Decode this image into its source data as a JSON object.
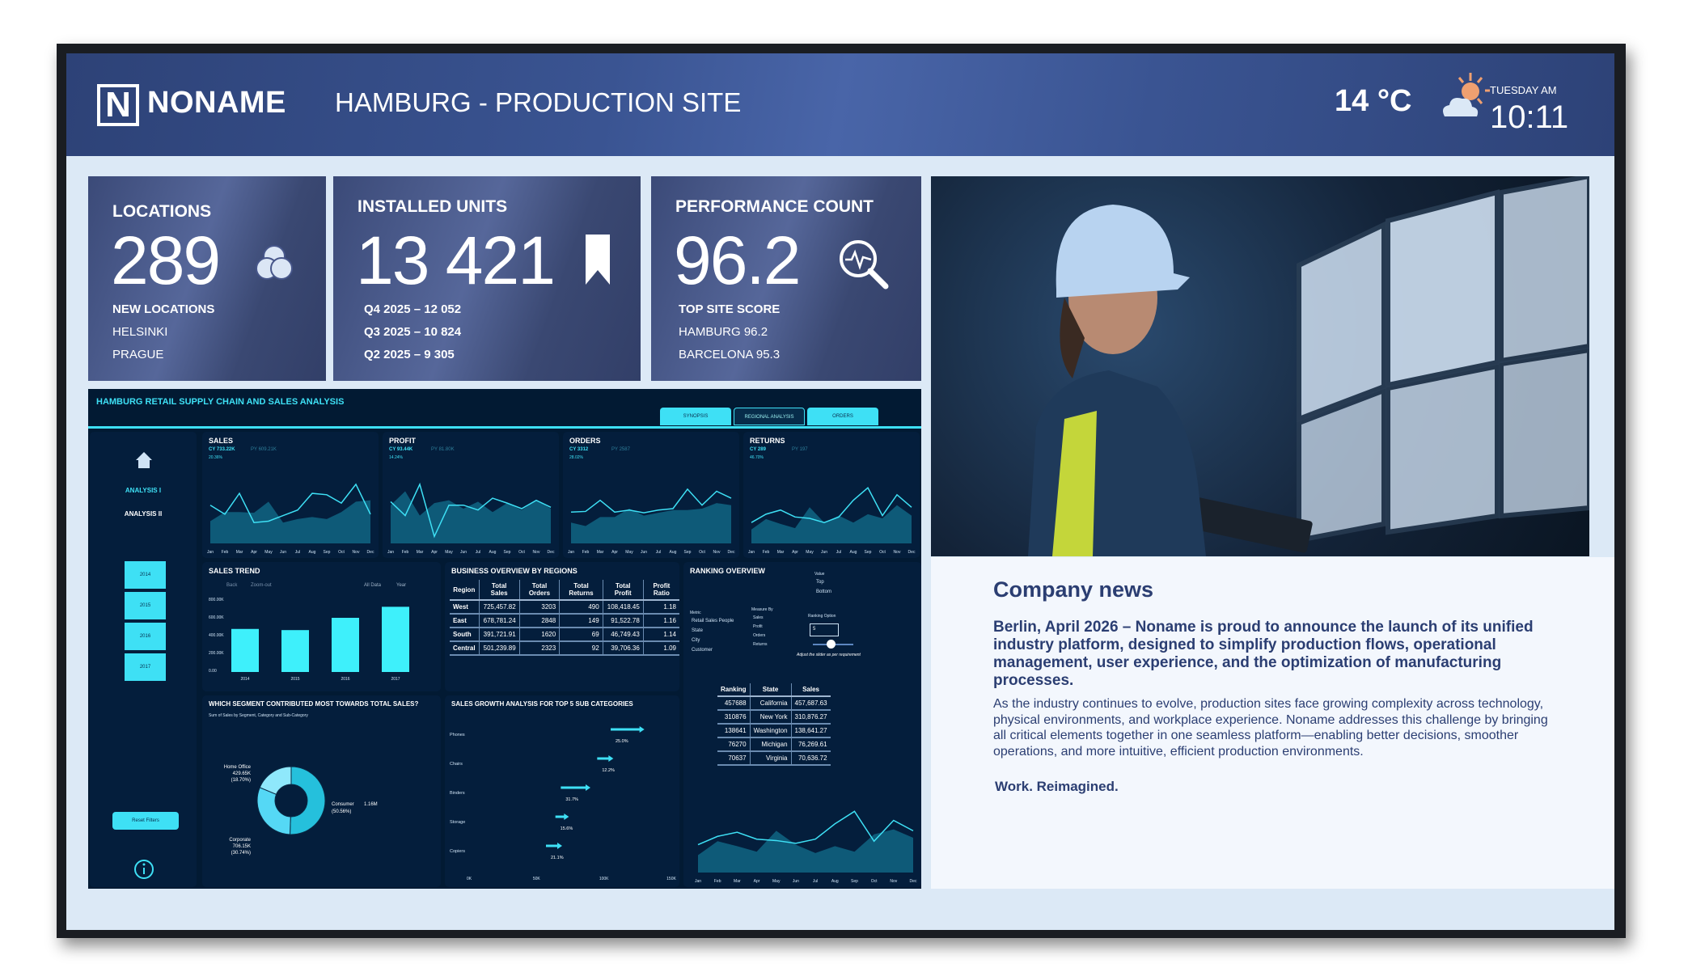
{
  "header": {
    "logo_letter": "N",
    "brand": "NONAME",
    "site_title": "HAMBURG - PRODUCTION SITE",
    "temperature": "14 °C",
    "weather_icon": "sun-cloud-icon",
    "day": "TUESDAY AM",
    "time": "10:11"
  },
  "cards": [
    {
      "title": "LOCATIONS",
      "value": "289",
      "icon": "venn-circles-icon",
      "lines": [
        "NEW LOCATIONS",
        "HELSINKI",
        "PRAGUE"
      ]
    },
    {
      "title": "INSTALLED UNITS",
      "value": "13 421",
      "icon": "bookmark-icon",
      "lines": [
        "Q4 2025 – 12 052",
        "Q3 2025 – 10 824",
        "Q2 2025 –  9 305"
      ]
    },
    {
      "title": "PERFORMANCE COUNT",
      "value": "96.2",
      "icon": "magnifier-pulse-icon",
      "lines": [
        "TOP SITE SCORE",
        "HAMBURG 96.2",
        "BARCELONA 95.3"
      ]
    }
  ],
  "dashboard": {
    "title": "HAMBURG RETAIL SUPPLY CHAIN AND SALES ANALYSIS",
    "tabs": [
      "SYNOPSIS",
      "REGIONAL ANALYSIS",
      "ORDERS"
    ],
    "nav": {
      "items": [
        "ANALYSIS I",
        "ANALYSIS II"
      ],
      "years": [
        "2014",
        "2015",
        "2016",
        "2017"
      ],
      "reset": "Reset Filters"
    },
    "months": [
      "Jan",
      "Feb",
      "Mar",
      "Apr",
      "May",
      "Jun",
      "Jul",
      "Aug",
      "Sep",
      "Oct",
      "Nov",
      "Dec"
    ],
    "kpis": [
      {
        "title": "SALES",
        "cy": "CY 733.22K",
        "py": "PY 609.21K",
        "delta": "20.36%",
        "cy_series": [
          55,
          42,
          72,
          30,
          32,
          40,
          48,
          72,
          70,
          58,
          85,
          42
        ],
        "py_series": [
          32,
          45,
          45,
          44,
          60,
          30,
          35,
          38,
          35,
          45,
          60,
          62
        ]
      },
      {
        "title": "PROFIT",
        "cy": "CY 93.44K",
        "py": "PY 81.80K",
        "delta": "14.24%",
        "cy_series": [
          60,
          40,
          85,
          10,
          55,
          55,
          48,
          65,
          58,
          50,
          62,
          52
        ],
        "py_series": [
          55,
          75,
          40,
          58,
          62,
          50,
          60,
          45,
          58,
          48,
          62,
          50
        ]
      },
      {
        "title": "ORDERS",
        "cy": "CY 3312",
        "py": "PY 2587",
        "delta": "28.02%",
        "cy_series": [
          45,
          46,
          62,
          45,
          48,
          44,
          48,
          50,
          78,
          55,
          75,
          65
        ],
        "py_series": [
          30,
          25,
          38,
          38,
          50,
          40,
          44,
          48,
          48,
          50,
          58,
          55
        ]
      },
      {
        "title": "RETURNS",
        "cy": "CY 289",
        "py": "PY 197",
        "delta": "46.70%",
        "cy_series": [
          30,
          42,
          48,
          38,
          36,
          30,
          38,
          62,
          80,
          40,
          70,
          52
        ],
        "py_series": [
          20,
          35,
          28,
          22,
          52,
          30,
          40,
          30,
          42,
          36,
          55,
          40
        ]
      }
    ],
    "sales_trend": {
      "title": "SALES TREND",
      "controls": [
        "Back",
        "Zoom-out",
        "All Data",
        "Year"
      ],
      "y_ticks": [
        "800.00K",
        "600.00K",
        "400.00K",
        "200.00K",
        "0.00"
      ],
      "categories": [
        "2014",
        "2015",
        "2016",
        "2017"
      ],
      "values": [
        484000,
        471000,
        609000,
        733000
      ],
      "ymax": 800000
    },
    "business": {
      "title": "BUSINESS OVERVIEW BY REGIONS",
      "columns": [
        "Region",
        "Total Sales",
        "Total Orders",
        "Total Returns",
        "Total Profit",
        "Profit Ratio"
      ],
      "rows": [
        [
          "West",
          "725,457.82",
          "3203",
          "490",
          "108,418.45",
          "1.18"
        ],
        [
          "East",
          "678,781.24",
          "2848",
          "149",
          "91,522.78",
          "1.16"
        ],
        [
          "South",
          "391,721.91",
          "1620",
          "69",
          "46,749.43",
          "1.14"
        ],
        [
          "Central",
          "501,239.89",
          "2323",
          "92",
          "39,706.36",
          "1.09"
        ]
      ]
    },
    "ranking": {
      "title": "RANKING OVERVIEW",
      "value_label": "Value",
      "value_options": [
        "Top",
        "Bottom"
      ],
      "metric_label": "Metric",
      "metrics": [
        "Retail Sales People",
        "State",
        "City",
        "Customer"
      ],
      "measure_label": "Measure By",
      "measures": [
        "Sales",
        "Profit",
        "Orders",
        "Returns"
      ],
      "option_label": "Ranking Option",
      "option_value": "5",
      "slider_hint": "Adjust the slider as per requirement",
      "columns": [
        "Ranking",
        "State",
        "Sales"
      ],
      "rows": [
        [
          "457688",
          "California",
          "457,687.63"
        ],
        [
          "310876",
          "New York",
          "310,876.27"
        ],
        [
          "138641",
          "Washington",
          "138,641.27"
        ],
        [
          "76270",
          "Michigan",
          "76,269.61"
        ],
        [
          "70637",
          "Virginia",
          "70,636.72"
        ]
      ],
      "cy_series": [
        40,
        52,
        58,
        48,
        46,
        42,
        48,
        70,
        88,
        45,
        75,
        60
      ],
      "py_series": [
        25,
        45,
        38,
        30,
        60,
        40,
        28,
        38,
        30,
        55,
        62,
        50
      ]
    },
    "segment": {
      "title": "WHICH SEGMENT CONTRIBUTED MOST TOWARDS TOTAL SALES?",
      "subtitle": "Sum of Sales by Segment, Category and Sub-Category",
      "slices": [
        {
          "name": "Consumer",
          "value": "1.16M",
          "pct": 50.56,
          "label": "(50.56%)",
          "color": "#25c0dc"
        },
        {
          "name": "Corporate",
          "value": "706.15K",
          "pct": 30.74,
          "label": "(30.74%)",
          "color": "#55d8f5"
        },
        {
          "name": "Home Office",
          "value": "429.65K",
          "pct": 18.7,
          "label": "(18.70%)",
          "color": "#8fe8fb"
        }
      ]
    },
    "growth": {
      "title": "SALES GROWTH ANALYSIS FOR TOP 5 SUB CATEGORIES",
      "x_ticks": [
        "0K",
        "50K",
        "100K",
        "150K"
      ],
      "items": [
        {
          "name": "Phones",
          "from": 105,
          "to": 130,
          "pct": "25.0%"
        },
        {
          "name": "Chairs",
          "from": 95,
          "to": 107,
          "pct": "12.2%"
        },
        {
          "name": "Binders",
          "from": 68,
          "to": 90,
          "pct": "31.7%"
        },
        {
          "name": "Storage",
          "from": 64,
          "to": 74,
          "pct": "15.6%"
        },
        {
          "name": "Copiers",
          "from": 57,
          "to": 69,
          "pct": "21.1%"
        }
      ]
    }
  },
  "news": {
    "heading": "Company news",
    "lead": "Berlin, April 2026 – Noname is proud to announce the launch of its unified industry platform, designed to simplify production flows, operational management, user experience, and the optimization of manufacturing processes.",
    "body": "As the industry continues to evolve, production sites face growing complexity across technology, physical environments, and workplace experience. Noname addresses this challenge by bringing all critical elements together in one seamless platform—enabling better decisions, smoother operations, and more intuitive, efficient production environments.",
    "tagline": "Work. Reimagined."
  },
  "colors": {
    "accent": "#3ee0f5",
    "header": "#3a5492",
    "dashboard_bg": "#021a33",
    "news_text": "#2b3e72"
  }
}
